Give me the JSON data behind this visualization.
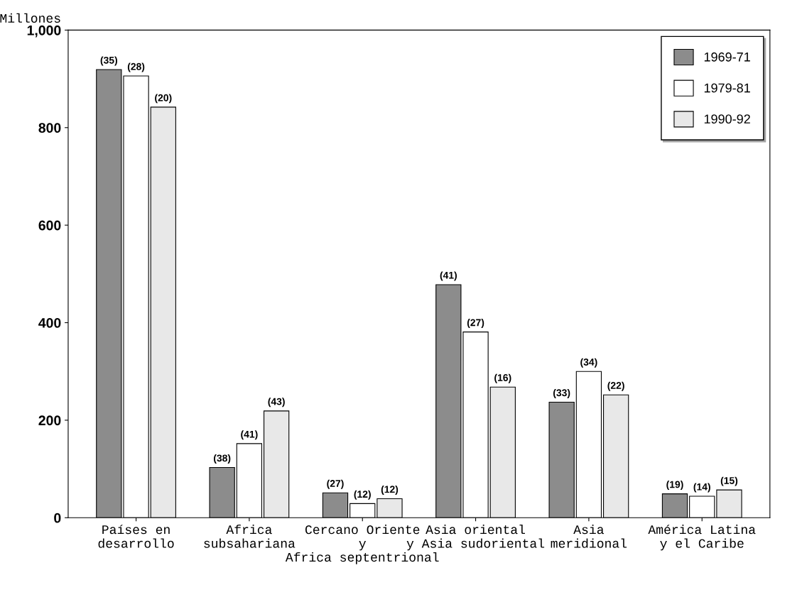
{
  "chart_data": {
    "type": "bar",
    "ylabel": "Millones",
    "categories": [
      "Países en\ndesarrollo",
      "Africa\nsubsahariana",
      "Cercano Oriente\ny\nAfrica septentrional",
      "Asia oriental\ny Asia sudoriental",
      "Asia\nmeridional",
      "América Latina\ny el Caribe"
    ],
    "series": [
      {
        "name": "1969-71",
        "color": "#8c8c8c",
        "values": [
          919,
          103,
          51,
          478,
          237,
          49
        ]
      },
      {
        "name": "1979-81",
        "color": "#ffffff",
        "values": [
          906,
          152,
          29,
          381,
          300,
          44
        ]
      },
      {
        "name": "1990-92",
        "color": "#e8e8e8",
        "values": [
          842,
          219,
          39,
          268,
          252,
          57
        ]
      }
    ],
    "annotations": [
      "(35)",
      "(38)",
      "(27)",
      "(41)",
      "(33)",
      "(19)",
      "(28)",
      "(41)",
      "(12)",
      "(27)",
      "(34)",
      "(14)",
      "(20)",
      "(43)",
      "(12)",
      "(16)",
      "(22)",
      "(15)"
    ],
    "ylim": [
      0,
      1000
    ],
    "yticks": [
      0,
      200,
      400,
      600,
      800,
      {
        "value": 1000,
        "label": "1,000"
      }
    ],
    "grid": false,
    "legend": "top right"
  }
}
